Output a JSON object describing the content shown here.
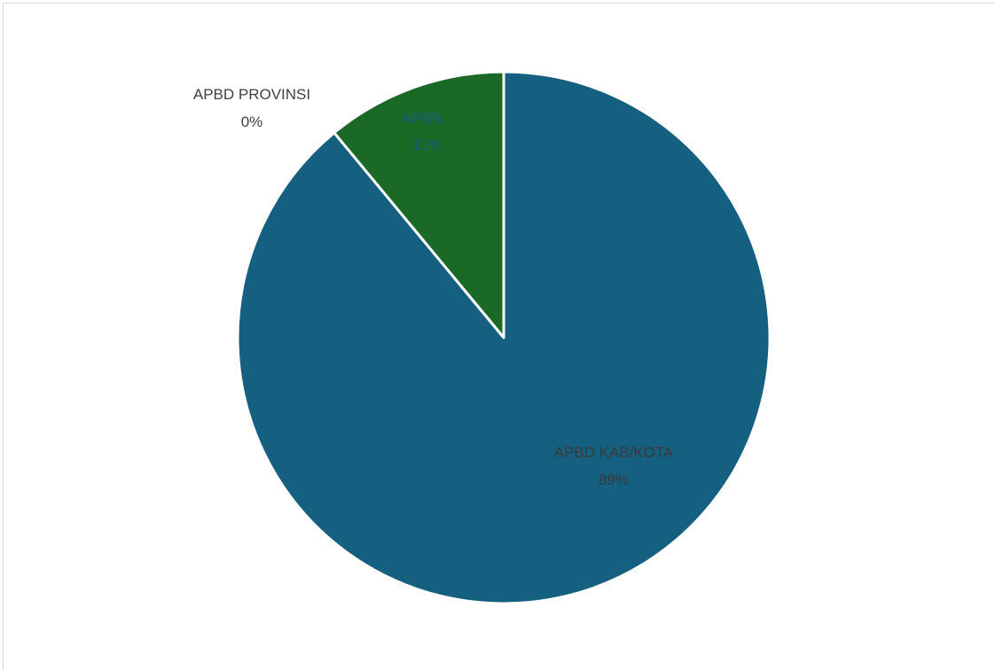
{
  "chart_data": {
    "type": "pie",
    "title": "",
    "slices": [
      {
        "label": "APBN :",
        "percent_label": "11%",
        "value": 11,
        "color": "#1b6926"
      },
      {
        "label": "APBD KAB/KOTA",
        "percent_label": "89%",
        "value": 89,
        "color": "#155f81"
      },
      {
        "label": "APBD PROVINSI",
        "percent_label": "0%",
        "value": 0,
        "color": "#e97132"
      }
    ],
    "start_angle": "12 o'clock",
    "direction": "counter-clockwise",
    "legend": "none"
  }
}
